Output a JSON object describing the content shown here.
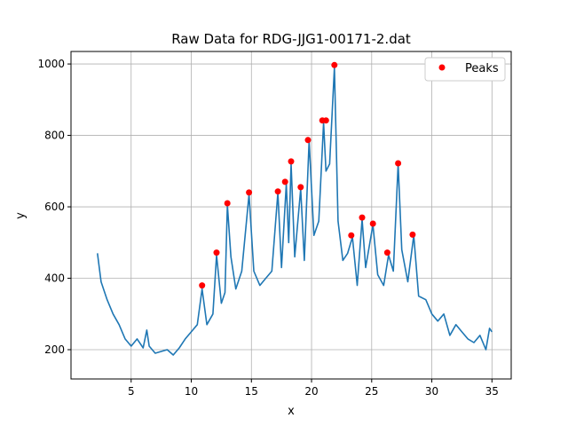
{
  "chart_data": {
    "type": "line",
    "title": "Raw Data for RDG-JJG1-00171-2.dat",
    "xlabel": "x",
    "ylabel": "y",
    "xlim": [
      0.0,
      36.6
    ],
    "ylim": [
      118,
      1035
    ],
    "xticks": [
      5,
      10,
      15,
      20,
      25,
      30,
      35
    ],
    "yticks": [
      200,
      400,
      600,
      800,
      1000
    ],
    "grid": true,
    "legend": {
      "position": "top-right",
      "entries": [
        "Peaks"
      ]
    },
    "colors": {
      "line": "#1f77b4",
      "peaks": "#ff0000",
      "grid": "#b0b0b0"
    },
    "series": [
      {
        "style": "line",
        "x": [
          2.2,
          2.5,
          3.0,
          3.5,
          4.0,
          4.5,
          5.0,
          5.5,
          6.0,
          6.3,
          6.5,
          7.0,
          7.5,
          8.0,
          8.5,
          9.0,
          9.5,
          10.0,
          10.5,
          10.9,
          11.3,
          11.8,
          12.1,
          12.5,
          12.8,
          13.0,
          13.3,
          13.7,
          14.2,
          14.8,
          15.2,
          15.7,
          16.2,
          16.7,
          17.2,
          17.5,
          17.9,
          18.1,
          18.3,
          18.6,
          19.1,
          19.4,
          19.8,
          20.2,
          20.6,
          21.0,
          21.2,
          21.5,
          21.9,
          22.2,
          22.6,
          23.0,
          23.4,
          23.8,
          24.2,
          24.5,
          25.1,
          25.5,
          26.0,
          26.4,
          26.8,
          27.2,
          27.5,
          28.0,
          28.5,
          28.9,
          29.5,
          30.0,
          30.5,
          31.0,
          31.5,
          32.0,
          32.5,
          33.0,
          33.5,
          34.0,
          34.5,
          34.8,
          35.0
        ],
        "y": [
          470,
          390,
          340,
          300,
          270,
          230,
          210,
          230,
          205,
          255,
          210,
          190,
          195,
          200,
          185,
          205,
          230,
          250,
          270,
          370,
          270,
          300,
          465,
          330,
          360,
          605,
          460,
          370,
          420,
          635,
          420,
          380,
          400,
          420,
          640,
          430,
          665,
          500,
          720,
          460,
          650,
          450,
          785,
          520,
          560,
          835,
          700,
          720,
          990,
          560,
          450,
          470,
          515,
          380,
          565,
          430,
          550,
          410,
          380,
          465,
          420,
          720,
          480,
          390,
          520,
          350,
          340,
          300,
          280,
          300,
          240,
          270,
          250,
          230,
          220,
          240,
          200,
          260,
          250
        ]
      },
      {
        "name": "Peaks",
        "style": "markers",
        "x": [
          10.9,
          12.1,
          13.0,
          14.8,
          17.2,
          17.8,
          18.3,
          19.1,
          19.7,
          20.9,
          21.2,
          21.9,
          23.3,
          24.2,
          25.1,
          26.3,
          27.2,
          28.4
        ],
        "y": [
          380,
          472,
          610,
          640,
          643,
          670,
          727,
          655,
          787,
          842,
          842,
          997,
          520,
          570,
          553,
          472,
          722,
          522
        ]
      }
    ]
  }
}
